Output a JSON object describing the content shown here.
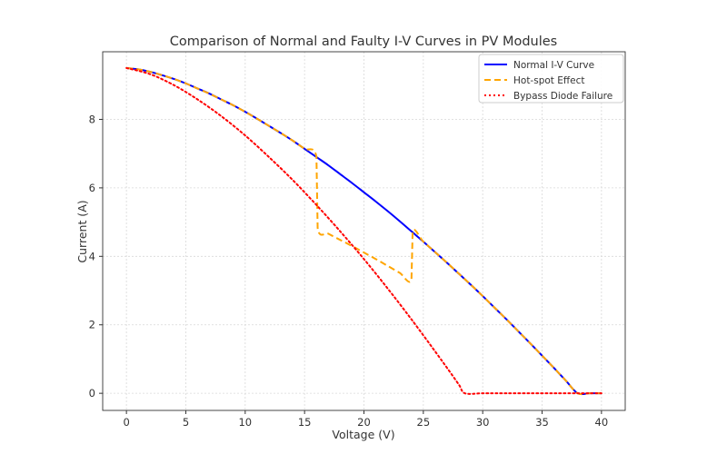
{
  "chart_data": {
    "type": "line",
    "title": "Comparison of Normal and Faulty I-V Curves in PV Modules",
    "xlabel": "Voltage (V)",
    "ylabel": "Current (A)",
    "xlim": [
      -2,
      42
    ],
    "ylim": [
      -0.5,
      9.975
    ],
    "xticks": [
      0,
      5,
      10,
      15,
      20,
      25,
      30,
      35,
      40
    ],
    "yticks": [
      0,
      2,
      4,
      6,
      8
    ],
    "grid": true,
    "legend_position": "top-right",
    "series": [
      {
        "name": "Normal I-V Curve",
        "color": "#0000ff",
        "style": "solid",
        "x": [
          0,
          1,
          2,
          3,
          4,
          5,
          6,
          7,
          8,
          9,
          10,
          11,
          12,
          13,
          14,
          15,
          16,
          17,
          18,
          19,
          20,
          21,
          22,
          23,
          24,
          25,
          26,
          27,
          28,
          29,
          30,
          31,
          32,
          33,
          34,
          35,
          36,
          37,
          38,
          39,
          40
        ],
        "y": [
          9.5,
          9.46,
          9.39,
          9.29,
          9.18,
          9.05,
          8.9,
          8.75,
          8.58,
          8.41,
          8.22,
          8.02,
          7.81,
          7.6,
          7.38,
          7.14,
          6.9,
          6.66,
          6.4,
          6.14,
          5.87,
          5.6,
          5.32,
          5.03,
          4.73,
          4.43,
          4.12,
          3.81,
          3.49,
          3.17,
          2.84,
          2.5,
          2.16,
          1.81,
          1.46,
          1.1,
          0.74,
          0.37,
          0,
          0,
          0
        ]
      },
      {
        "name": "Hot-spot Effect",
        "color": "#ffa500",
        "style": "dashed",
        "x": [
          0,
          1,
          2,
          3,
          4,
          5,
          6,
          7,
          8,
          9,
          10,
          11,
          12,
          13,
          14,
          15,
          16,
          16.1,
          17,
          18,
          19,
          20,
          21,
          22,
          23,
          24,
          24.1,
          25,
          26,
          27,
          28,
          29,
          30,
          31,
          32,
          33,
          34,
          35,
          36,
          37,
          38,
          39,
          40
        ],
        "y": [
          9.5,
          9.46,
          9.39,
          9.29,
          9.18,
          9.05,
          8.9,
          8.75,
          8.58,
          8.41,
          8.22,
          8.02,
          7.81,
          7.6,
          7.38,
          7.14,
          6.9,
          4.83,
          4.66,
          4.48,
          4.3,
          4.11,
          3.92,
          3.72,
          3.52,
          3.31,
          4.73,
          4.43,
          4.12,
          3.81,
          3.49,
          3.17,
          2.84,
          2.5,
          2.16,
          1.81,
          1.46,
          1.1,
          0.74,
          0.37,
          0,
          0,
          0
        ]
      },
      {
        "name": "Bypass Diode Failure",
        "color": "#ff0000",
        "style": "dotted",
        "x": [
          0,
          2,
          4,
          6,
          8,
          10,
          12,
          14,
          16,
          18,
          20,
          22,
          24,
          26,
          27,
          28,
          28.5,
          30,
          32,
          34,
          36,
          38,
          40
        ],
        "y": [
          9.5,
          9.32,
          9.0,
          8.58,
          8.09,
          7.53,
          6.9,
          6.23,
          5.5,
          4.73,
          3.92,
          3.06,
          2.16,
          1.22,
          0.74,
          0.25,
          0,
          0,
          0,
          0,
          0,
          0,
          0
        ]
      }
    ]
  }
}
